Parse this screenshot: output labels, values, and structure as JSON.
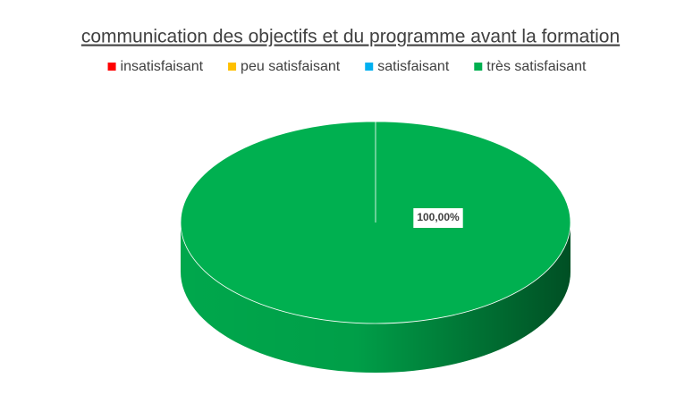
{
  "chart_data": {
    "type": "pie3d",
    "title": "communication des objectifs et du programme avant la formation",
    "categories": [
      "insatisfaisant",
      "peu satisfaisant",
      "satisfaisant",
      "très satisfaisant"
    ],
    "colors": [
      "#ff0000",
      "#ffc000",
      "#00b0f0",
      "#00b050"
    ],
    "values": [
      0,
      0,
      0,
      100
    ],
    "value_labels": [
      null,
      null,
      null,
      "100,00%"
    ],
    "legend": "top"
  }
}
